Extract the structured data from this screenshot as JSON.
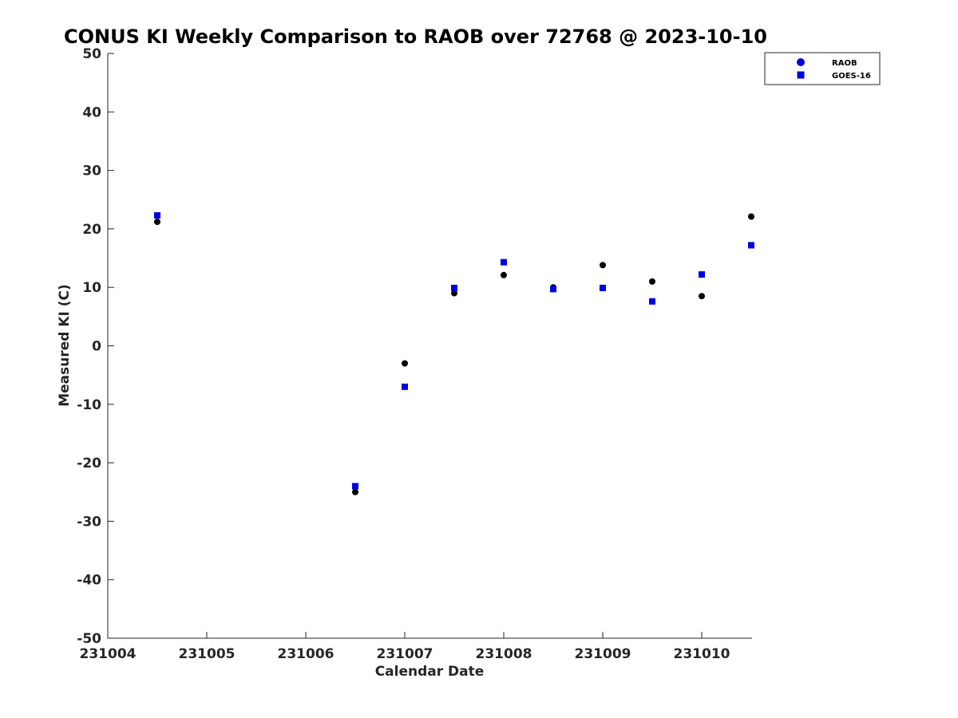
{
  "chart_data": {
    "type": "scatter",
    "title": "CONUS KI Weekly Comparison to RAOB over 72768 @ 2023-10-10",
    "xlabel": "Calendar Date",
    "ylabel": "Measured KI (C)",
    "xlim": [
      "231004",
      "231010.5"
    ],
    "ylim": [
      -50,
      50
    ],
    "x_ticks": [
      "231004",
      "231005",
      "231006",
      "231007",
      "231008",
      "231009",
      "231010"
    ],
    "y_ticks": [
      50,
      40,
      30,
      20,
      10,
      0,
      -10,
      -20,
      -30,
      -40,
      -50
    ],
    "grid": false,
    "legend_position": "top-right",
    "series": [
      {
        "name": "RAOB",
        "marker": "circle",
        "color": "#000000",
        "points": [
          {
            "x": "2023-10-04 12Z",
            "y": 21.2
          },
          {
            "x": "2023-10-06 12Z",
            "y": -25.0
          },
          {
            "x": "2023-10-07 00Z",
            "y": -3.0
          },
          {
            "x": "2023-10-07 12Z",
            "y": 9.0
          },
          {
            "x": "2023-10-08 00Z",
            "y": 12.1
          },
          {
            "x": "2023-10-08 12Z",
            "y": 10.0
          },
          {
            "x": "2023-10-09 00Z",
            "y": 13.8
          },
          {
            "x": "2023-10-09 12Z",
            "y": 11.0
          },
          {
            "x": "2023-10-10 00Z",
            "y": 8.5
          },
          {
            "x": "2023-10-10 12Z",
            "y": 22.1
          }
        ]
      },
      {
        "name": "GOES-16",
        "marker": "square",
        "color": "#0000e0",
        "points": [
          {
            "x": "2023-10-04 12Z",
            "y": 22.3
          },
          {
            "x": "2023-10-06 12Z",
            "y": -24.0
          },
          {
            "x": "2023-10-07 00Z",
            "y": -7.0
          },
          {
            "x": "2023-10-07 12Z",
            "y": 9.9
          },
          {
            "x": "2023-10-08 00Z",
            "y": 14.3
          },
          {
            "x": "2023-10-08 12Z",
            "y": 9.7
          },
          {
            "x": "2023-10-09 00Z",
            "y": 9.9
          },
          {
            "x": "2023-10-09 12Z",
            "y": 7.6
          },
          {
            "x": "2023-10-10 00Z",
            "y": 12.2
          },
          {
            "x": "2023-10-10 12Z",
            "y": 17.2
          }
        ]
      }
    ]
  }
}
